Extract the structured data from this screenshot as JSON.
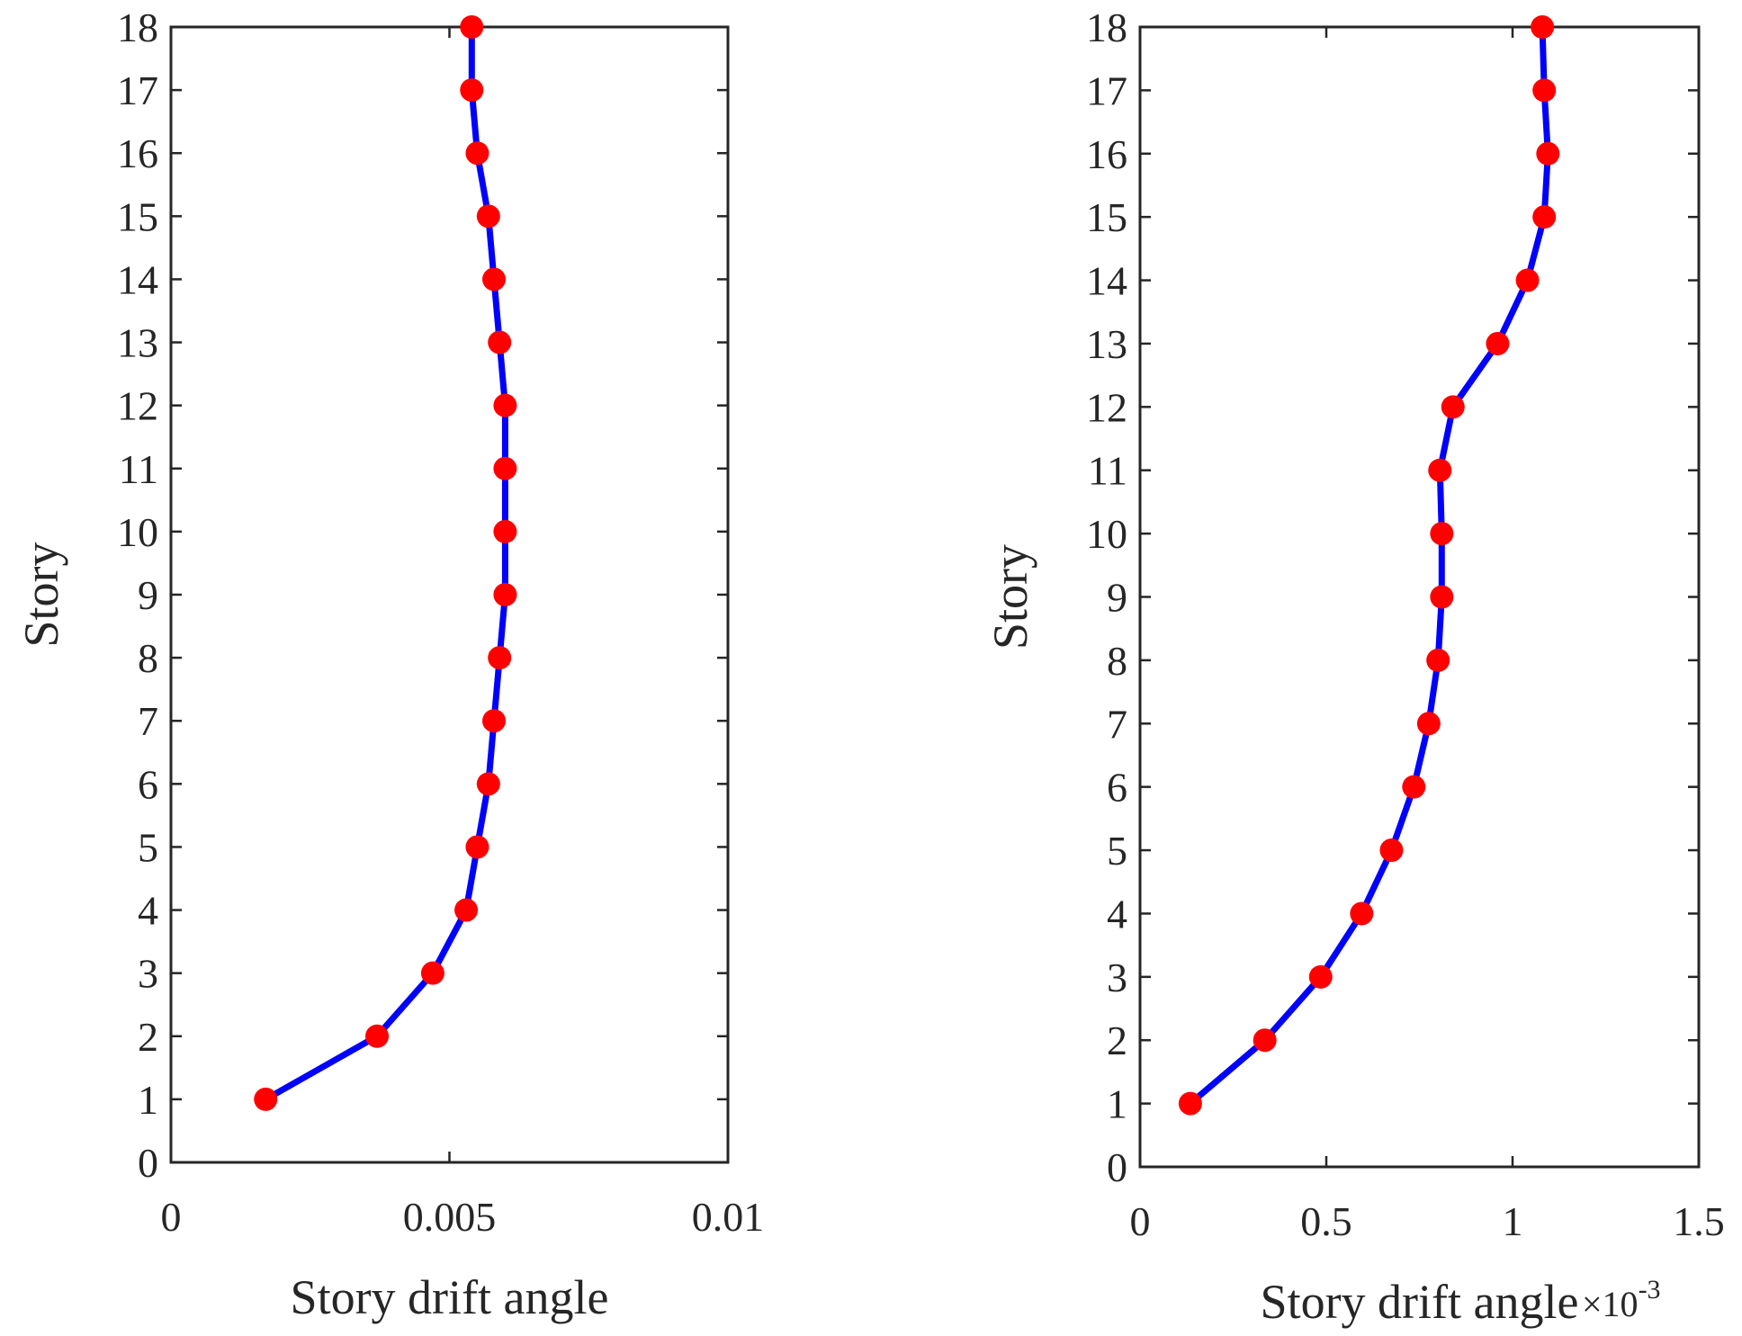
{
  "chart_data": [
    {
      "type": "line",
      "title": "",
      "xlabel": "Story drift angle",
      "ylabel": "Story",
      "x_exponent_label": "",
      "xlim": [
        0,
        0.01
      ],
      "ylim": [
        0,
        18
      ],
      "xticks": [
        0,
        0.005,
        0.01
      ],
      "xtick_labels": [
        "0",
        "0.005",
        "0.01"
      ],
      "yticks": [
        0,
        1,
        2,
        3,
        4,
        5,
        6,
        7,
        8,
        9,
        10,
        11,
        12,
        13,
        14,
        15,
        16,
        17,
        18
      ],
      "ytick_labels": [
        "0",
        "1",
        "2",
        "3",
        "4",
        "5",
        "6",
        "7",
        "8",
        "9",
        "10",
        "11",
        "12",
        "13",
        "14",
        "15",
        "16",
        "17",
        "18"
      ],
      "grid": false,
      "series": [
        {
          "name": "Story drift angle",
          "line_color": "#0000ff",
          "marker_color": "#ff0000",
          "x": [
            0.0017,
            0.0037,
            0.0047,
            0.0053,
            0.0055,
            0.0057,
            0.0058,
            0.0059,
            0.006,
            0.006,
            0.006,
            0.006,
            0.0059,
            0.0058,
            0.0057,
            0.0055,
            0.0054,
            0.0054
          ],
          "y": [
            1,
            2,
            3,
            4,
            5,
            6,
            7,
            8,
            9,
            10,
            11,
            12,
            13,
            14,
            15,
            16,
            17,
            18
          ]
        }
      ]
    },
    {
      "type": "line",
      "title": "",
      "xlabel": "Story drift angle",
      "ylabel": "Story",
      "x_exponent_label": "×10",
      "x_exponent_power": "-3",
      "xlim": [
        0,
        1.5
      ],
      "ylim": [
        0,
        18
      ],
      "xticks": [
        0,
        0.5,
        1,
        1.5
      ],
      "xtick_labels": [
        "0",
        "0.5",
        "1",
        "1.5"
      ],
      "yticks": [
        0,
        1,
        2,
        3,
        4,
        5,
        6,
        7,
        8,
        9,
        10,
        11,
        12,
        13,
        14,
        15,
        16,
        17,
        18
      ],
      "ytick_labels": [
        "0",
        "1",
        "2",
        "3",
        "4",
        "5",
        "6",
        "7",
        "8",
        "9",
        "10",
        "11",
        "12",
        "13",
        "14",
        "15",
        "16",
        "17",
        "18"
      ],
      "grid": false,
      "series": [
        {
          "name": "Story drift angle",
          "line_color": "#0000ff",
          "marker_color": "#ff0000",
          "x": [
            0.135,
            0.335,
            0.485,
            0.595,
            0.675,
            0.735,
            0.775,
            0.8,
            0.81,
            0.81,
            0.805,
            0.84,
            0.96,
            1.04,
            1.085,
            1.095,
            1.085,
            1.08
          ],
          "y": [
            1,
            2,
            3,
            4,
            5,
            6,
            7,
            8,
            9,
            10,
            11,
            12,
            13,
            14,
            15,
            16,
            17,
            18
          ]
        }
      ]
    }
  ]
}
